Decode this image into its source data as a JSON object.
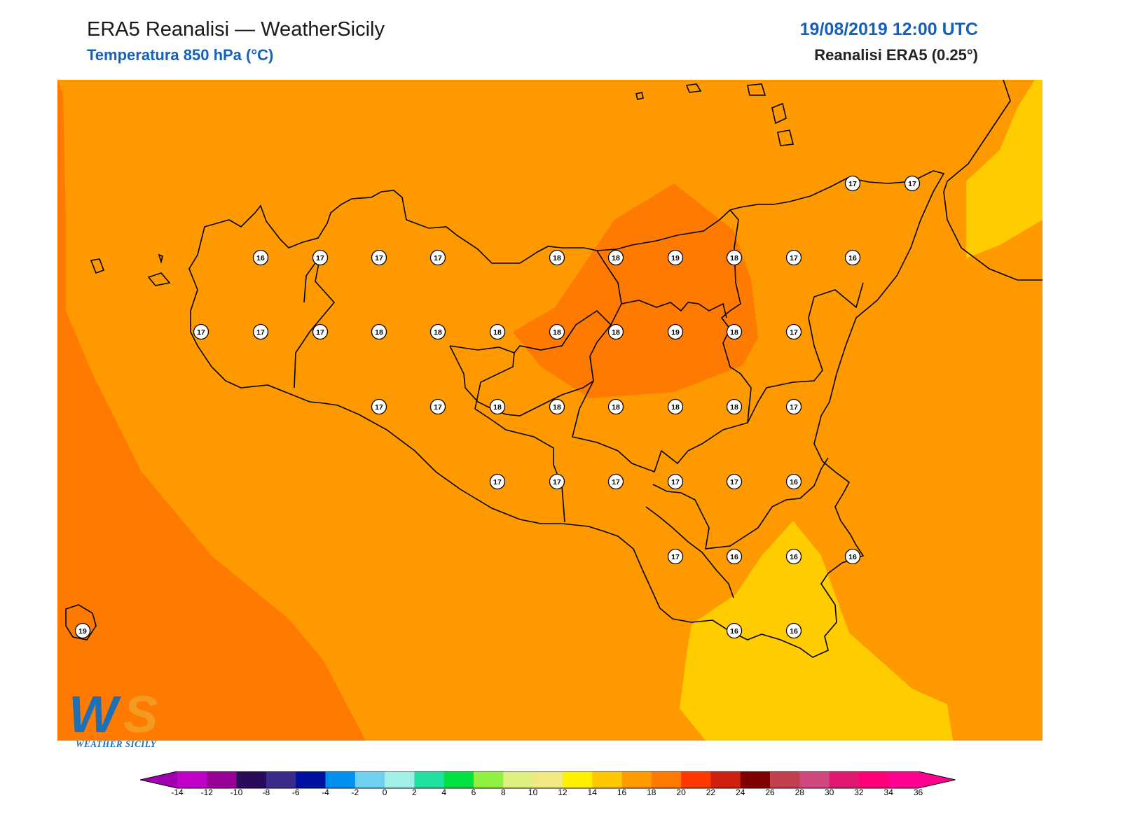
{
  "header": {
    "title": "ERA5 Reanalisi — WeatherSicily",
    "subtitle": "Temperatura 850 hPa (°C)",
    "datetime": "19/08/2019 12:00 UTC",
    "source": "Reanalisi ERA5 (0.25°)"
  },
  "logo": {
    "text": "WEATHER SICILY",
    "initials": "WS"
  },
  "colors": {
    "t14_16": "#ffcc00",
    "t16_18": "#ff9900",
    "t18_20": "#ff7a00",
    "outline": "#000000",
    "label_bg": "#ffffff"
  },
  "colorbar": {
    "ticks": [
      "-14",
      "-12",
      "-10",
      "-8",
      "-6",
      "-4",
      "-2",
      "0",
      "2",
      "4",
      "6",
      "8",
      "10",
      "12",
      "14",
      "16",
      "18",
      "20",
      "22",
      "24",
      "26",
      "28",
      "30",
      "32",
      "34",
      "36"
    ],
    "colors": [
      "#c000c8",
      "#960096",
      "#2a0a5a",
      "#3a2a8a",
      "#0010a0",
      "#0090f0",
      "#70d0f0",
      "#a0f0e8",
      "#20e0a0",
      "#00e040",
      "#90f040",
      "#e0f080",
      "#f0e880",
      "#fff000",
      "#ffc800",
      "#ff9a00",
      "#ff7800",
      "#ff3800",
      "#d02010",
      "#800000",
      "#c04050",
      "#d04880",
      "#e01870",
      "#ff0078",
      "#ff0090"
    ],
    "left_arrow_color": "#a000b0",
    "right_arrow_color": "#ff0090"
  },
  "stations": [
    {
      "v": "16"
    },
    {
      "v": "17"
    },
    {
      "v": "17"
    },
    {
      "v": "17"
    },
    {
      "v": "18"
    },
    {
      "v": "18"
    },
    {
      "v": "19"
    },
    {
      "v": "18"
    },
    {
      "v": "17"
    },
    {
      "v": "16"
    },
    {
      "v": "17"
    },
    {
      "v": "17"
    },
    {
      "v": "17"
    },
    {
      "v": "18"
    },
    {
      "v": "18"
    },
    {
      "v": "18"
    },
    {
      "v": "18"
    },
    {
      "v": "18"
    },
    {
      "v": "19"
    },
    {
      "v": "18"
    },
    {
      "v": "17"
    },
    {
      "v": "17"
    },
    {
      "v": "17"
    },
    {
      "v": "18"
    },
    {
      "v": "18"
    },
    {
      "v": "18"
    },
    {
      "v": "18"
    },
    {
      "v": "18"
    },
    {
      "v": "17"
    },
    {
      "v": "17"
    },
    {
      "v": "17"
    },
    {
      "v": "17"
    },
    {
      "v": "17"
    },
    {
      "v": "17"
    },
    {
      "v": "16"
    },
    {
      "v": "17"
    },
    {
      "v": "16"
    },
    {
      "v": "16"
    },
    {
      "v": "16"
    },
    {
      "v": "16"
    },
    {
      "v": "16"
    },
    {
      "v": "17"
    },
    {
      "v": "17"
    },
    {
      "v": "19"
    }
  ]
}
